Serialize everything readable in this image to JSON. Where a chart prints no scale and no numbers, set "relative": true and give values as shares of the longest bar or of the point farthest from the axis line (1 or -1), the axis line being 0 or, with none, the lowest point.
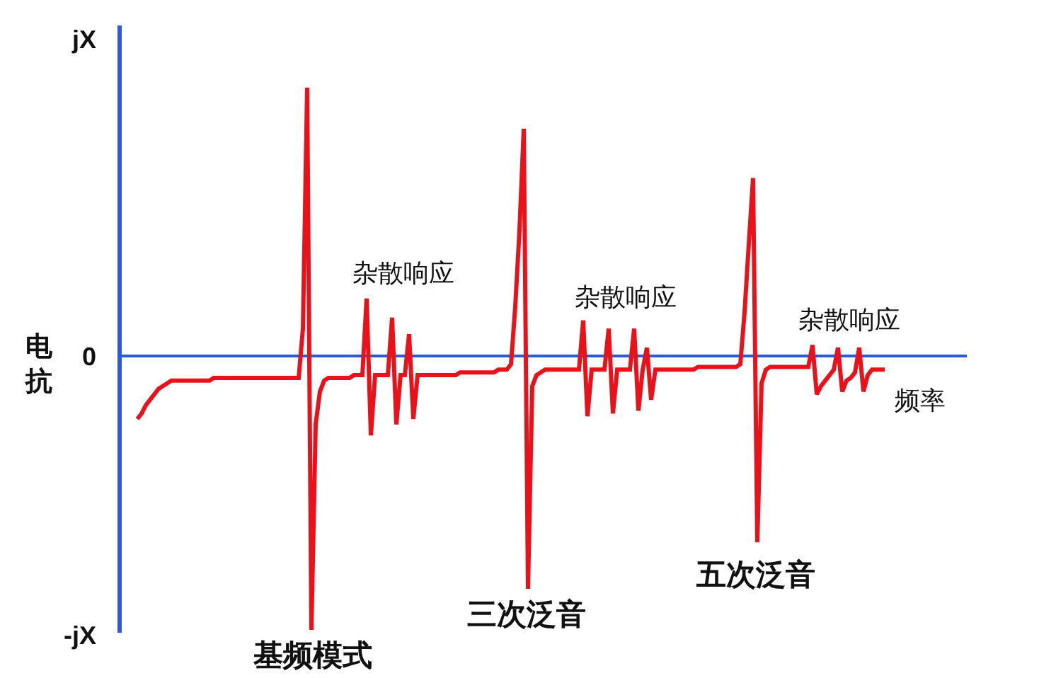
{
  "chart_data": {
    "type": "line",
    "relative": true,
    "xlabel": "频率",
    "ylabel": "电抗",
    "annotations": [
      "jX",
      "0",
      "-jX",
      "杂散响应",
      "杂散响应",
      "杂散响应",
      "基频模式",
      "三次泛音",
      "五次泛音"
    ],
    "ref_lines": [
      {
        "axis": "y",
        "value": 0,
        "color": "#2b5bd7"
      }
    ],
    "categories": [
      null,
      null,
      null,
      null,
      null,
      null,
      null,
      null,
      null,
      null,
      null,
      null,
      null,
      null,
      null,
      null,
      null,
      null,
      null,
      null,
      null,
      null,
      null,
      null,
      null,
      null,
      null,
      null,
      null,
      null,
      null,
      null,
      null,
      null,
      null,
      null,
      null,
      null,
      null,
      null,
      null,
      null,
      null,
      null,
      null,
      null,
      null,
      null,
      null,
      null,
      null,
      null,
      null,
      null,
      null,
      null,
      null,
      null,
      null,
      null,
      null,
      null,
      null,
      null,
      null,
      null,
      null,
      null,
      null,
      null,
      null,
      null,
      null,
      null,
      null,
      null,
      null,
      null,
      null,
      null,
      null,
      null,
      null,
      null,
      null,
      null,
      null,
      null,
      null,
      null,
      null,
      null,
      null,
      null,
      null,
      null,
      null,
      null,
      null,
      null,
      null,
      null,
      null,
      null,
      null,
      null,
      null,
      null,
      null,
      null,
      null,
      null,
      null,
      null,
      null,
      null,
      null,
      null,
      null,
      null,
      null,
      null,
      null,
      null,
      null,
      null,
      null,
      null,
      null,
      null,
      null,
      null,
      null,
      null,
      null,
      null,
      null,
      null,
      null,
      null,
      null,
      null,
      null,
      null,
      null,
      null,
      null,
      null,
      null,
      null,
      null,
      null,
      null,
      null,
      null,
      null,
      null,
      null,
      null,
      null,
      null,
      null,
      null,
      null,
      null,
      null,
      null,
      null,
      null,
      null,
      null,
      null,
      null,
      null,
      null,
      null,
      null
    ],
    "series": [
      {
        "color": "#e8131a",
        "values": [
          -0.23,
          -0.21,
          -0.18,
          -0.16,
          -0.14,
          -0.12,
          -0.11,
          -0.1,
          -0.09,
          -0.09,
          -0.09,
          -0.09,
          -0.09,
          -0.09,
          -0.09,
          -0.09,
          -0.09,
          -0.09,
          -0.08,
          -0.08,
          -0.08,
          -0.08,
          -0.08,
          -0.08,
          -0.08,
          -0.08,
          -0.08,
          -0.08,
          -0.08,
          -0.08,
          -0.08,
          -0.08,
          -0.08,
          -0.08,
          -0.08,
          -0.08,
          -0.08,
          -0.08,
          -0.08,
          0.1,
          0.98,
          -1,
          -0.25,
          -0.13,
          -0.09,
          -0.08,
          -0.08,
          -0.08,
          -0.08,
          -0.08,
          -0.08,
          -0.07,
          -0.07,
          -0.07,
          0.21,
          -0.29,
          -0.07,
          -0.07,
          -0.07,
          -0.07,
          0.14,
          -0.25,
          -0.07,
          -0.07,
          0.08,
          -0.23,
          -0.07,
          -0.07,
          -0.07,
          -0.07,
          -0.07,
          -0.07,
          -0.07,
          -0.07,
          -0.07,
          -0.07,
          -0.06,
          -0.06,
          -0.06,
          -0.06,
          -0.06,
          -0.06,
          -0.06,
          -0.06,
          -0.06,
          -0.05,
          -0.05,
          -0.05,
          -0.03,
          0.18,
          0.46,
          0.83,
          -0.85,
          -0.11,
          -0.07,
          -0.06,
          -0.05,
          -0.05,
          -0.05,
          -0.05,
          -0.05,
          -0.05,
          -0.05,
          -0.05,
          -0.05,
          0.13,
          -0.22,
          -0.05,
          -0.05,
          -0.05,
          -0.05,
          0.1,
          -0.21,
          -0.05,
          -0.05,
          -0.05,
          -0.05,
          0.1,
          -0.2,
          -0.05,
          0.03,
          -0.16,
          -0.05,
          -0.05,
          -0.05,
          -0.05,
          -0.05,
          -0.05,
          -0.05,
          -0.05,
          -0.05,
          -0.05,
          -0.04,
          -0.04,
          -0.04,
          -0.04,
          -0.04,
          -0.04,
          -0.04,
          -0.04,
          -0.04,
          -0.04,
          -0.03,
          0.16,
          0.41,
          0.65,
          -0.68,
          -0.1,
          -0.05,
          -0.04,
          -0.04,
          -0.04,
          -0.04,
          -0.04,
          -0.04,
          -0.04,
          -0.04,
          -0.04,
          -0.04,
          0.04,
          -0.14,
          -0.11,
          -0.09,
          -0.07,
          -0.05,
          0.03,
          -0.13,
          -0.09,
          -0.08,
          -0.06,
          0.03,
          -0.13,
          -0.07,
          -0.05,
          -0.05,
          -0.05,
          -0.05
        ]
      }
    ]
  }
}
